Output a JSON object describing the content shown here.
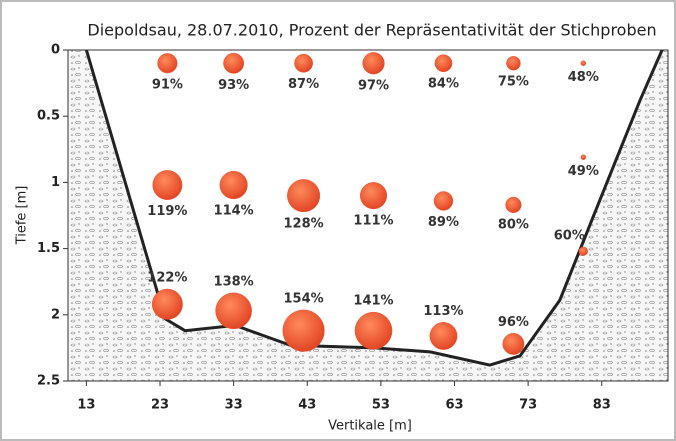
{
  "chart_data": {
    "type": "bubble",
    "title": "Diepoldsau, 28.07.2010, Prozent der Repräsentativität der Stichproben",
    "x_label": "Vertikale [m]",
    "y_label": "Tiefe [m]",
    "xlim": [
      10.5,
      92
    ],
    "xticks": [
      13,
      23,
      33,
      43,
      53,
      63,
      73,
      83
    ],
    "ylim": [
      0,
      2.5
    ],
    "yticks": [
      0,
      0.5,
      1,
      1.5,
      2,
      2.5
    ],
    "y_inverted": true,
    "series": [
      {
        "color": "#f0583a",
        "x": [
          24,
          33,
          42.5,
          52,
          61.5,
          71,
          80.5,
          24,
          33,
          42.5,
          52,
          61.5,
          71,
          80.5,
          24,
          33,
          42.5,
          52,
          61.5,
          71,
          80.5
        ],
        "values": [
          0.1,
          0.1,
          0.1,
          0.1,
          0.1,
          0.1,
          0.1,
          1.02,
          1.02,
          1.1,
          1.1,
          1.14,
          1.17,
          0.81,
          1.92,
          1.97,
          2.12,
          2.12,
          2.16,
          2.22,
          1.52
        ],
        "sizes": [
          91,
          93,
          87,
          97,
          84,
          75,
          48,
          119,
          114,
          128,
          111,
          89,
          80,
          49,
          122,
          138,
          154,
          141,
          113,
          96,
          60
        ],
        "value_labels": [
          "91%",
          "93%",
          "87%",
          "97%",
          "84%",
          "75%",
          "48%",
          "119%",
          "114%",
          "128%",
          "111%",
          "89%",
          "80%",
          "49%",
          "122%",
          "138%",
          "154%",
          "141%",
          "113%",
          "96%",
          "60%"
        ]
      }
    ],
    "profile": {
      "x": [
        13,
        23.7,
        26.4,
        33.2,
        40.7,
        52.2,
        59.7,
        67.8,
        71.9,
        77.3,
        82.7,
        88.2,
        91.2
      ],
      "y": [
        0,
        2.03,
        2.12,
        2.08,
        2.23,
        2.25,
        2.28,
        2.38,
        2.31,
        1.89,
        1.14,
        0.38,
        0
      ]
    }
  }
}
